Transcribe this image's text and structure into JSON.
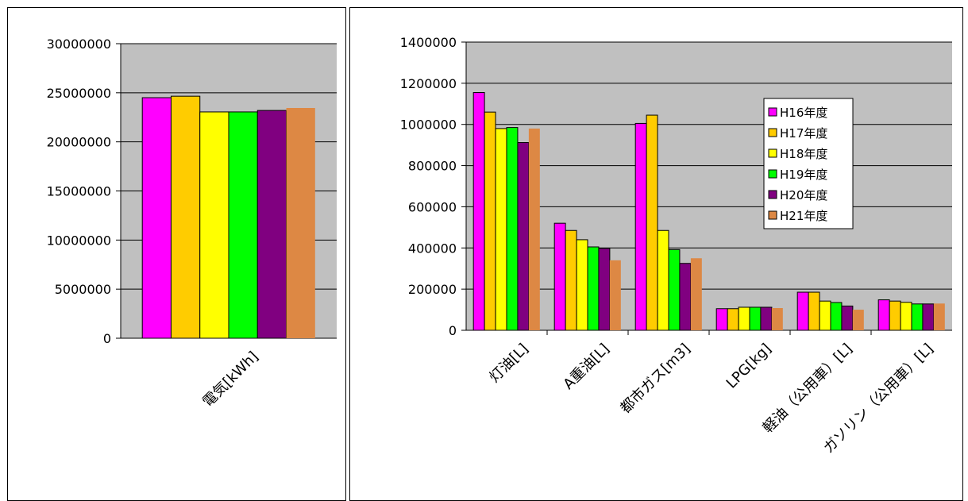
{
  "colors": {
    "plot_bg": "#c0c0c0",
    "series": [
      "#ff00ff",
      "#ffcc00",
      "#ffff00",
      "#00ff00",
      "#800080",
      "#dd8844"
    ]
  },
  "chart_data": [
    {
      "type": "bar",
      "categories": [
        "電気[kWh]"
      ],
      "series": [
        {
          "name": "H16年度",
          "values": [
            24500000
          ]
        },
        {
          "name": "H17年度",
          "values": [
            24650000
          ]
        },
        {
          "name": "H18年度",
          "values": [
            23050000
          ]
        },
        {
          "name": "H19年度",
          "values": [
            23050000
          ]
        },
        {
          "name": "H20年度",
          "values": [
            23200000
          ]
        },
        {
          "name": "H21年度",
          "values": [
            23450000
          ]
        }
      ],
      "ylim": [
        0,
        30000000
      ],
      "yticks": [
        "0",
        "5000000",
        "10000000",
        "15000000",
        "20000000",
        "25000000",
        "30000000"
      ],
      "grid": true,
      "legend": "none"
    },
    {
      "type": "bar",
      "categories": [
        "灯油[L]",
        "A重油[L]",
        "都市ガス[m3]",
        "LPG[kg]",
        "軽油（公用車）[L]",
        "ガソリン（公用車）[L]"
      ],
      "series": [
        {
          "name": "H16年度",
          "values": [
            1155000,
            520000,
            1005000,
            105000,
            185000,
            148000
          ]
        },
        {
          "name": "H17年度",
          "values": [
            1060000,
            485000,
            1045000,
            105000,
            185000,
            142000
          ]
        },
        {
          "name": "H18年度",
          "values": [
            980000,
            440000,
            485000,
            112000,
            142000,
            136000
          ]
        },
        {
          "name": "H19年度",
          "values": [
            985000,
            405000,
            392000,
            112000,
            135000,
            128000
          ]
        },
        {
          "name": "H20年度",
          "values": [
            912000,
            398000,
            325000,
            112000,
            118000,
            128000
          ]
        },
        {
          "name": "H21年度",
          "values": [
            980000,
            340000,
            350000,
            108000,
            100000,
            130000
          ]
        }
      ],
      "ylim": [
        0,
        1400000
      ],
      "yticks": [
        "0",
        "200000",
        "400000",
        "600000",
        "800000",
        "1000000",
        "1200000",
        "1400000"
      ],
      "grid": true,
      "legend": "top-right"
    }
  ]
}
